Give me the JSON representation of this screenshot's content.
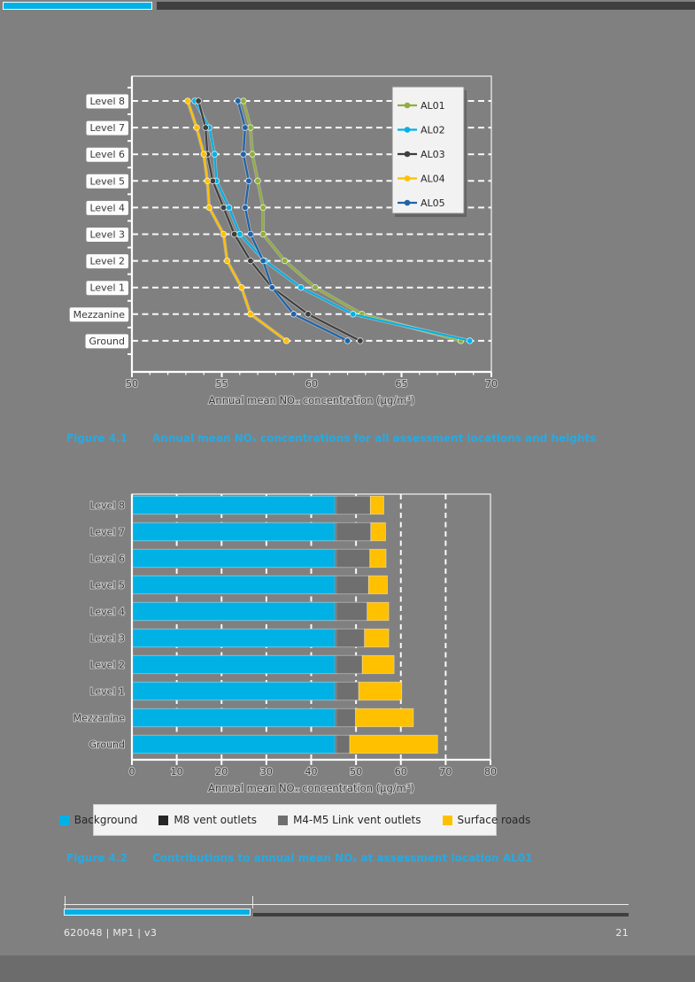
{
  "page": {
    "background": "#808080"
  },
  "header": {
    "accent_color": "#00B1E6",
    "bar_color": "#3F3F3F"
  },
  "figures": {
    "caption_color": "#29A9E0",
    "fig1": {
      "label": "Figure 4.1",
      "caption": "Annual mean NOₓ concentrations for all assessment locations and heights"
    },
    "fig2": {
      "label": "Figure 4.2",
      "caption": "Contributions to annual mean NOₓ at assessment location AL01"
    }
  },
  "footer": {
    "doc_ref": "620048 | MP1 | v3",
    "page_number": "21"
  },
  "chart_data": [
    {
      "type": "line",
      "orientation": "horizontal-categories",
      "title": "",
      "categories": [
        "Level 8",
        "Level 7",
        "Level 6",
        "Level 5",
        "Level 4",
        "Level 3",
        "Level 2",
        "Level 1",
        "Mezzanine",
        "Ground"
      ],
      "xlabel": "Annual mean NOₓ concentration (µg/m³)",
      "xlim": [
        50,
        70
      ],
      "xticks": [
        50,
        55,
        60,
        65,
        70
      ],
      "minor_tick_step": 1,
      "grid": "dashed-white-horizontal",
      "legend_position": "top-right",
      "series": [
        {
          "name": "AL01",
          "color": "#8FAE3C",
          "values": [
            56.2,
            56.6,
            56.7,
            57.0,
            57.3,
            57.3,
            58.5,
            60.2,
            62.8,
            68.3
          ]
        },
        {
          "name": "AL02",
          "color": "#00B1E6",
          "values": [
            53.5,
            54.3,
            54.6,
            54.7,
            55.4,
            56.0,
            57.4,
            59.4,
            62.3,
            68.8
          ]
        },
        {
          "name": "AL03",
          "color": "#3F3F3F",
          "values": [
            53.7,
            54.1,
            54.2,
            54.5,
            55.1,
            55.7,
            56.6,
            57.8,
            59.8,
            62.7
          ]
        },
        {
          "name": "AL04",
          "color": "#FFC000",
          "values": [
            53.1,
            53.6,
            54.0,
            54.2,
            54.3,
            55.1,
            55.3,
            56.1,
            56.6,
            58.6
          ]
        },
        {
          "name": "AL05",
          "color": "#1F63A8",
          "values": [
            55.9,
            56.3,
            56.2,
            56.5,
            56.3,
            56.6,
            57.3,
            57.8,
            59.0,
            62.0
          ]
        }
      ]
    },
    {
      "type": "bar",
      "stacked": true,
      "orientation": "horizontal",
      "title": "",
      "categories": [
        "Level 8",
        "Level 7",
        "Level 6",
        "Level 5",
        "Level 4",
        "Level 3",
        "Level 2",
        "Level 1",
        "Mezzanine",
        "Ground"
      ],
      "xlabel": "Annual mean NOₓ concentration (µg/m³)",
      "xlim": [
        0,
        80
      ],
      "xticks": [
        0,
        10,
        20,
        30,
        40,
        50,
        60,
        70,
        80
      ],
      "grid": "dashed-white-vertical",
      "legend_position": "bottom",
      "series": [
        {
          "name": "Background",
          "color": "#00B1E6",
          "values": [
            45.3,
            45.3,
            45.3,
            45.3,
            45.3,
            45.3,
            45.3,
            45.3,
            45.3,
            45.3
          ]
        },
        {
          "name": "M8 vent outlets",
          "color": "#262626",
          "values": [
            0.3,
            0.3,
            0.3,
            0.3,
            0.3,
            0.3,
            0.3,
            0.3,
            0.3,
            0.3
          ]
        },
        {
          "name": "M4-M5 Link vent outlets",
          "color": "#6F6F6F",
          "values": [
            7.6,
            7.7,
            7.5,
            7.2,
            6.9,
            6.3,
            5.8,
            5.0,
            4.3,
            3.0
          ]
        },
        {
          "name": "Surface roads",
          "color": "#FFC000",
          "values": [
            3.0,
            3.3,
            3.6,
            4.2,
            4.8,
            5.4,
            7.1,
            9.6,
            12.9,
            19.6
          ]
        }
      ]
    }
  ]
}
